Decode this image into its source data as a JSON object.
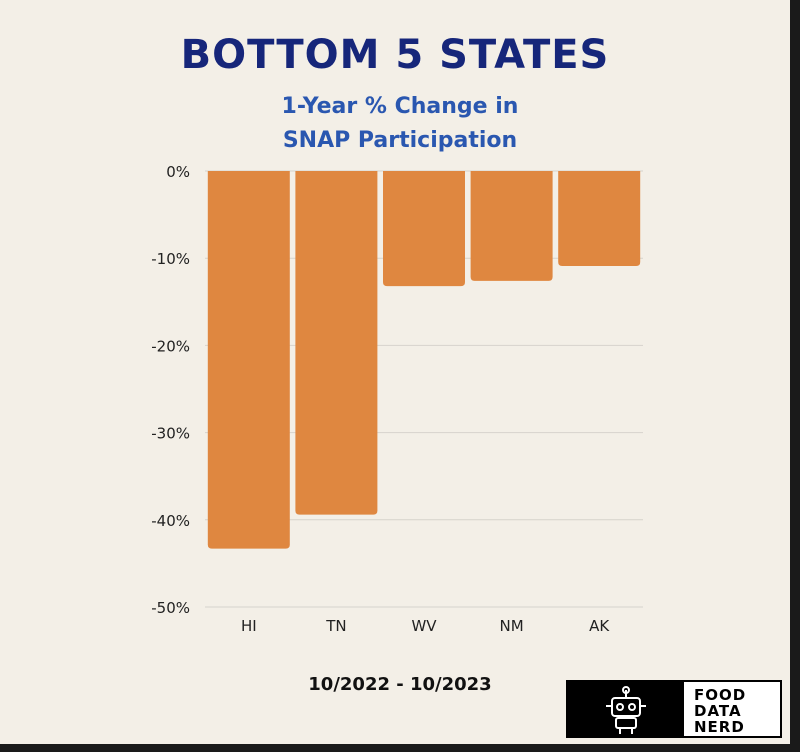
{
  "header": {
    "title": "BOTTOM 5 STATES",
    "subtitle_line1": "1-Year % Change in",
    "subtitle_line2": "SNAP Participation"
  },
  "footer": {
    "date_range": "10/2022 - 10/2023",
    "logo_line1": "FOOD",
    "logo_line2": "DATA",
    "logo_line3": "NERD",
    "logo_icon": "robot-icon"
  },
  "colors": {
    "bar": "#df8740",
    "title": "#16267a",
    "subtitle": "#2a57b0",
    "background": "#f3efe7",
    "grid": "#d6d3cc"
  },
  "chart_data": {
    "type": "bar",
    "title": "BOTTOM 5 STATES",
    "subtitle": "1-Year % Change in SNAP Participation",
    "categories": [
      "HI",
      "TN",
      "WV",
      "NM",
      "AK"
    ],
    "values": [
      -43.3,
      -39.4,
      -13.2,
      -12.6,
      -10.9
    ],
    "unit": "%",
    "ylim": [
      -50,
      0
    ],
    "yticks": [
      0,
      -10,
      -20,
      -30,
      -40,
      -50
    ],
    "ytick_labels": [
      "0%",
      "-10%",
      "-20%",
      "-30%",
      "-40%",
      "-50%"
    ],
    "xlabel": "",
    "ylabel": "",
    "grid": true,
    "legend": "none"
  }
}
